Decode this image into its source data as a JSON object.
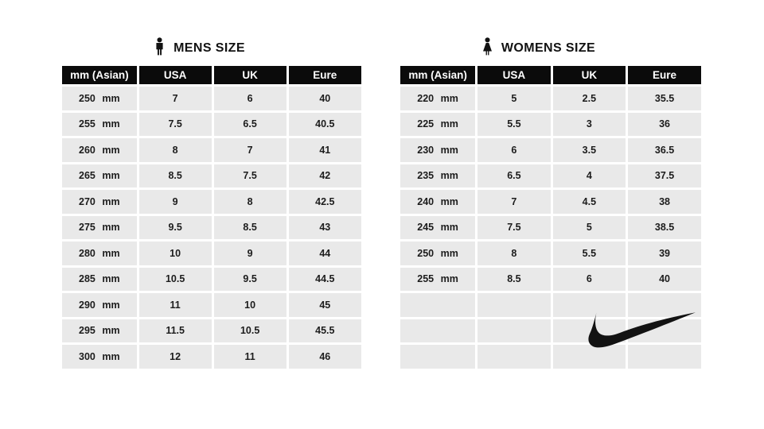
{
  "colors": {
    "page_bg": "#ffffff",
    "header_bg": "#0b0b0b",
    "header_text": "#ffffff",
    "cell_bg": "#e9e9e9",
    "cell_text": "#1c1c1c",
    "separator": "#ffffff",
    "logo_color": "#121212"
  },
  "chart_data": [
    {
      "type": "table",
      "title": "MENS SIZE",
      "icon": "man-icon",
      "columns": [
        "mm (Asian)",
        "USA",
        "UK",
        "Eure"
      ],
      "rows": [
        [
          "250 mm",
          "7",
          "6",
          "40"
        ],
        [
          "255 mm",
          "7.5",
          "6.5",
          "40.5"
        ],
        [
          "260 mm",
          "8",
          "7",
          "41"
        ],
        [
          "265 mm",
          "8.5",
          "7.5",
          "42"
        ],
        [
          "270 mm",
          "9",
          "8",
          "42.5"
        ],
        [
          "275 mm",
          "9.5",
          "8.5",
          "43"
        ],
        [
          "280 mm",
          "10",
          "9",
          "44"
        ],
        [
          "285 mm",
          "10.5",
          "9.5",
          "44.5"
        ],
        [
          "290 mm",
          "11",
          "10",
          "45"
        ],
        [
          "295 mm",
          "11.5",
          "10.5",
          "45.5"
        ],
        [
          "300 mm",
          "12",
          "11",
          "46"
        ]
      ],
      "empty_rows": 0,
      "logo": null
    },
    {
      "type": "table",
      "title": "WOMENS SIZE",
      "icon": "woman-icon",
      "columns": [
        "mm (Asian)",
        "USA",
        "UK",
        "Eure"
      ],
      "rows": [
        [
          "220 mm",
          "5",
          "2.5",
          "35.5"
        ],
        [
          "225 mm",
          "5.5",
          "3",
          "36"
        ],
        [
          "230 mm",
          "6",
          "3.5",
          "36.5"
        ],
        [
          "235 mm",
          "6.5",
          "4",
          "37.5"
        ],
        [
          "240 mm",
          "7",
          "4.5",
          "38"
        ],
        [
          "245 mm",
          "7.5",
          "5",
          "38.5"
        ],
        [
          "250 mm",
          "8",
          "5.5",
          "39"
        ],
        [
          "255 mm",
          "8.5",
          "6",
          "40"
        ]
      ],
      "empty_rows": 3,
      "logo": "nike-swoosh"
    }
  ]
}
